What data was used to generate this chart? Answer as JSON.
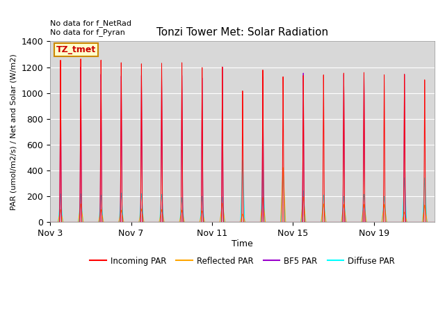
{
  "title": "Tonzi Tower Met: Solar Radiation",
  "ylabel": "PAR (umol/m2/s) / Net and Solar (W/m2)",
  "xlabel": "Time",
  "ylim": [
    0,
    1400
  ],
  "annotation_text": "No data for f_NetRad\nNo data for f_Pyran",
  "box_label": "TZ_tmet",
  "fig_bg_color": "#ffffff",
  "plot_bg_color": "#d8d8d8",
  "colors": {
    "incoming": "#ff0000",
    "reflected": "#ffa500",
    "bf5": "#9900cc",
    "diffuse": "#00ffff"
  },
  "legend_labels": [
    "Incoming PAR",
    "Reflected PAR",
    "BF5 PAR",
    "Diffuse PAR"
  ],
  "xtick_labels": [
    "Nov 3",
    "Nov 7",
    "Nov 11",
    "Nov 15",
    "Nov 19"
  ],
  "xtick_positions": [
    0,
    4,
    8,
    12,
    16
  ],
  "n_days": 19,
  "peaks_incoming": [
    1320,
    1330,
    1320,
    1300,
    1290,
    1295,
    1300,
    1260,
    1265,
    1070,
    1240,
    1185,
    1195,
    1200,
    1215,
    1220,
    1200,
    1205,
    1160
  ],
  "peaks_reflected": [
    100,
    145,
    100,
    95,
    105,
    100,
    95,
    90,
    150,
    65,
    195,
    430,
    200,
    145,
    140,
    140,
    140,
    80,
    135
  ],
  "peaks_bf5": [
    1260,
    1265,
    1205,
    1190,
    1195,
    1185,
    1195,
    1175,
    1265,
    0,
    1185,
    0,
    1215,
    0,
    1205,
    1215,
    0,
    1205,
    0
  ],
  "peaks_diffuse": [
    225,
    225,
    215,
    230,
    225,
    220,
    195,
    205,
    200,
    490,
    415,
    415,
    250,
    215,
    205,
    220,
    205,
    350,
    350
  ]
}
